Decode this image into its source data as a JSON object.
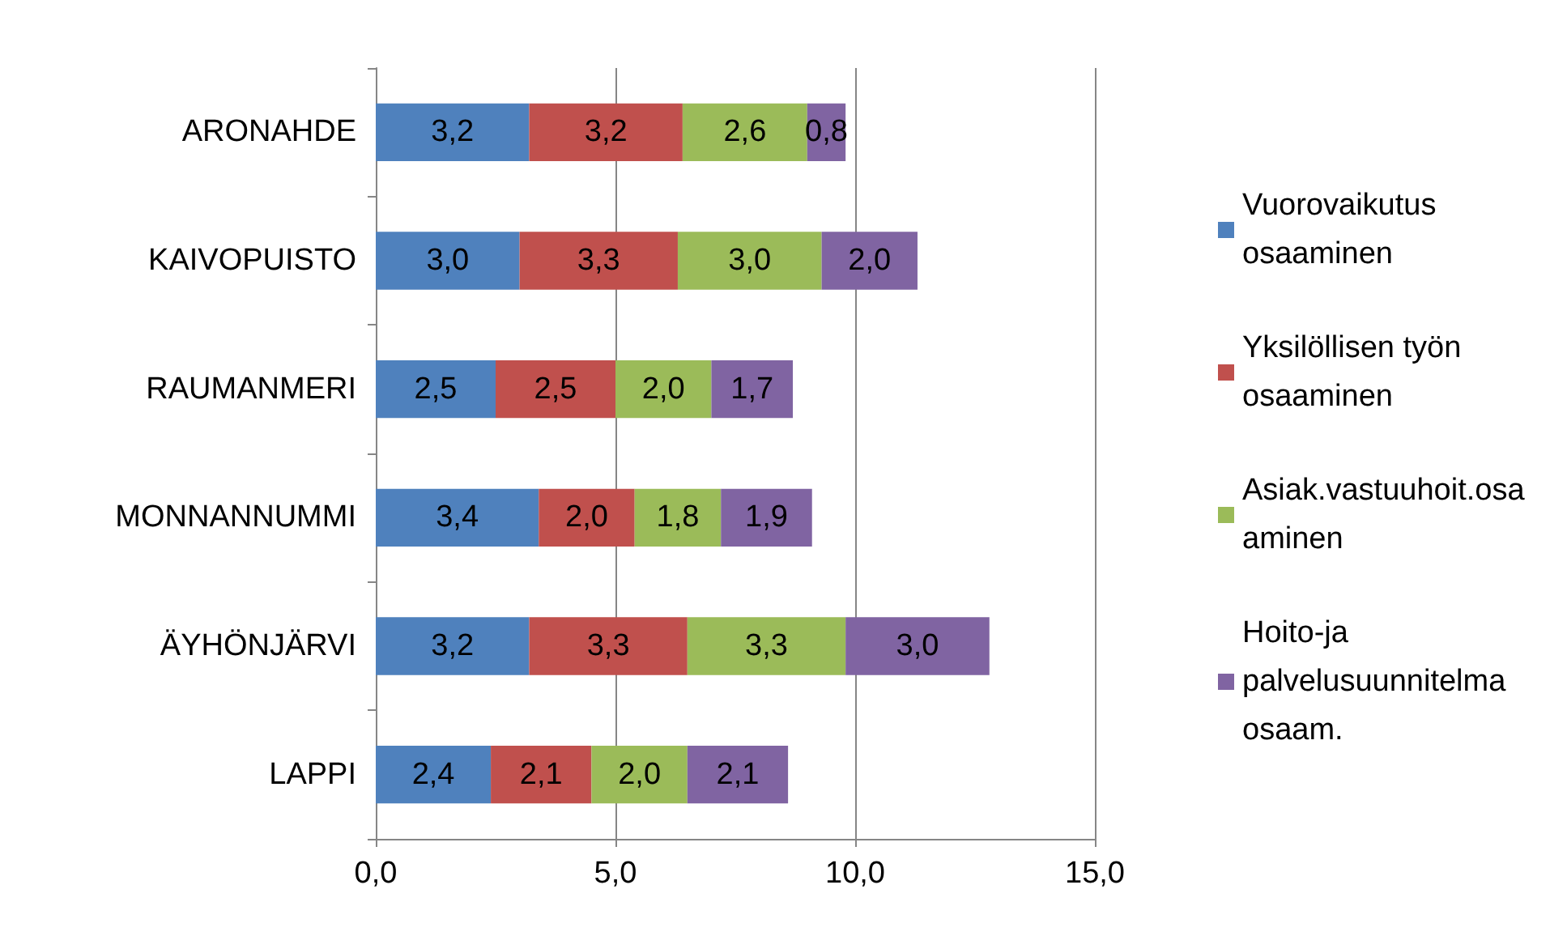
{
  "chart_data": {
    "type": "bar",
    "orientation": "horizontal",
    "stacked": true,
    "categories": [
      "ARONAHDE",
      "KAIVOPUISTO",
      "RAUMANMERI",
      "MONNANNUMMI",
      "ÄYHÖNJÄRVI",
      "LAPPI"
    ],
    "series": [
      {
        "name": "Vuorovaikutus osaaminen",
        "color": "#4f81bd",
        "values": [
          3.2,
          3.0,
          2.5,
          3.4,
          3.2,
          2.4
        ],
        "value_labels": [
          "3,2",
          "3,0",
          "2,5",
          "3,4",
          "3,2",
          "2,4"
        ]
      },
      {
        "name": "Yksilöllisen työn osaaminen",
        "color": "#c0504d",
        "values": [
          3.2,
          3.3,
          2.5,
          2.0,
          3.3,
          2.1
        ],
        "value_labels": [
          "3,2",
          "3,3",
          "2,5",
          "2,0",
          "3,3",
          "2,1"
        ]
      },
      {
        "name": "Asiak.vastuuhoit.osaaminen",
        "color": "#9bbb59",
        "values": [
          2.6,
          3.0,
          2.0,
          1.8,
          3.3,
          2.0
        ],
        "value_labels": [
          "2,6",
          "3,0",
          "2,0",
          "1,8",
          "3,3",
          "2,0"
        ]
      },
      {
        "name": "Hoito-ja palvelusuunnitelma osaam.",
        "color": "#8064a2",
        "values": [
          0.8,
          2.0,
          1.7,
          1.9,
          3.0,
          2.1
        ],
        "value_labels": [
          "0,8",
          "2,0",
          "1,7",
          "1,9",
          "3,0",
          "2,1"
        ]
      }
    ],
    "xlim": [
      0,
      15
    ],
    "xticks": [
      {
        "value": 0,
        "label": "0,0"
      },
      {
        "value": 5,
        "label": "5,0"
      },
      {
        "value": 10,
        "label": "10,0"
      },
      {
        "value": 15,
        "label": "15,0"
      }
    ],
    "grid": "x",
    "legend": "right"
  }
}
